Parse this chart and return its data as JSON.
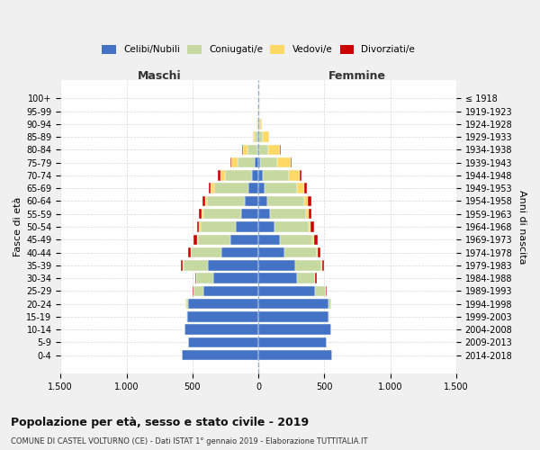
{
  "age_groups": [
    "0-4",
    "5-9",
    "10-14",
    "15-19",
    "20-24",
    "25-29",
    "30-34",
    "35-39",
    "40-44",
    "45-49",
    "50-54",
    "55-59",
    "60-64",
    "65-69",
    "70-74",
    "75-79",
    "80-84",
    "85-89",
    "90-94",
    "95-99",
    "100+"
  ],
  "birth_years": [
    "2014-2018",
    "2009-2013",
    "2004-2008",
    "1999-2003",
    "1994-1998",
    "1989-1993",
    "1984-1988",
    "1979-1983",
    "1974-1978",
    "1969-1973",
    "1964-1968",
    "1959-1963",
    "1954-1958",
    "1949-1953",
    "1944-1948",
    "1939-1943",
    "1934-1938",
    "1929-1933",
    "1924-1928",
    "1919-1923",
    "≤ 1918"
  ],
  "males": {
    "celibi": [
      580,
      530,
      560,
      540,
      530,
      420,
      340,
      380,
      280,
      210,
      170,
      130,
      100,
      75,
      50,
      25,
      10,
      5,
      3,
      2,
      2
    ],
    "coniugati": [
      0,
      0,
      3,
      5,
      20,
      70,
      130,
      190,
      230,
      250,
      270,
      290,
      290,
      260,
      200,
      130,
      70,
      20,
      5,
      2,
      1
    ],
    "vedovi": [
      0,
      0,
      0,
      0,
      1,
      1,
      1,
      2,
      3,
      5,
      8,
      10,
      15,
      25,
      40,
      50,
      40,
      20,
      5,
      1,
      0
    ],
    "divorziati": [
      0,
      0,
      0,
      1,
      2,
      5,
      10,
      15,
      20,
      25,
      20,
      20,
      20,
      15,
      15,
      10,
      5,
      0,
      0,
      0,
      0
    ]
  },
  "females": {
    "nubili": [
      560,
      520,
      550,
      530,
      530,
      430,
      290,
      280,
      200,
      160,
      120,
      90,
      65,
      45,
      30,
      15,
      8,
      5,
      3,
      2,
      2
    ],
    "coniugate": [
      0,
      0,
      2,
      5,
      20,
      80,
      140,
      200,
      240,
      250,
      260,
      270,
      280,
      250,
      200,
      130,
      65,
      25,
      8,
      2,
      1
    ],
    "vedove": [
      0,
      0,
      0,
      0,
      1,
      1,
      2,
      4,
      7,
      10,
      15,
      20,
      30,
      50,
      80,
      100,
      90,
      50,
      15,
      3,
      1
    ],
    "divorziate": [
      0,
      0,
      0,
      1,
      2,
      5,
      10,
      15,
      25,
      30,
      30,
      25,
      25,
      20,
      15,
      10,
      5,
      2,
      1,
      0,
      0
    ]
  },
  "colors": {
    "celibi": "#4472C4",
    "coniugati": "#C5D9A0",
    "vedovi": "#FFD966",
    "divorziati": "#CC0000"
  },
  "xlim": 1500,
  "xticks": [
    -1500,
    -1000,
    -500,
    0,
    500,
    1000,
    1500
  ],
  "xticklabels": [
    "1.500",
    "1.000",
    "500",
    "0",
    "500",
    "1.000",
    "1.500"
  ],
  "title_main": "Popolazione per età, sesso e stato civile - 2019",
  "title_sub": "COMUNE DI CASTEL VOLTURNO (CE) - Dati ISTAT 1° gennaio 2019 - Elaborazione TUTTITALIA.IT",
  "ylabel_left": "Fasce di età",
  "ylabel_right": "Anni di nascita",
  "maschi_label": "Maschi",
  "femmine_label": "Femmine",
  "bg_color": "#f0f0f0",
  "plot_bg": "#ffffff"
}
